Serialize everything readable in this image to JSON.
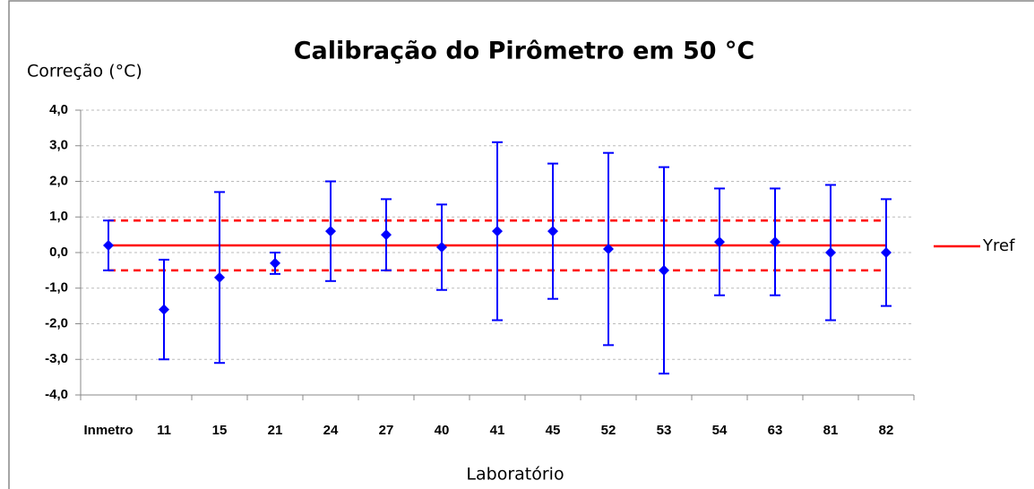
{
  "chart_data": {
    "type": "errorbar",
    "title": "Calibração do Pirômetro em 50 °C",
    "y_label": "Correção (°C)",
    "x_label": "Laboratório",
    "categories": [
      "Inmetro",
      "11",
      "15",
      "21",
      "24",
      "27",
      "40",
      "41",
      "45",
      "52",
      "53",
      "54",
      "63",
      "81",
      "82"
    ],
    "values": [
      0.2,
      -1.6,
      -0.7,
      -0.3,
      0.6,
      0.5,
      0.15,
      0.6,
      0.6,
      0.1,
      -0.5,
      0.3,
      0.3,
      0.0,
      0.0
    ],
    "errors": [
      0.7,
      1.4,
      2.4,
      0.3,
      1.4,
      1.0,
      1.2,
      2.5,
      1.9,
      2.7,
      2.9,
      1.5,
      1.5,
      1.9,
      1.5
    ],
    "color": "#0000ff",
    "yref": {
      "name": "Yref",
      "value": 0.2,
      "color": "#ff0000"
    },
    "limits": [
      0.9,
      -0.5
    ],
    "ylim": [
      -4,
      4
    ],
    "yticks": [
      {
        "value": -4,
        "label": "-4,0"
      },
      {
        "value": -3,
        "label": "-3,0"
      },
      {
        "value": -2,
        "label": "-2,0"
      },
      {
        "value": -1,
        "label": "-1,0"
      },
      {
        "value": 0,
        "label": "0,0"
      },
      {
        "value": 1,
        "label": "1,0"
      },
      {
        "value": 2,
        "label": "2,0"
      },
      {
        "value": 3,
        "label": "3,0"
      },
      {
        "value": 4,
        "label": "4,0"
      }
    ],
    "grid": true,
    "legend": "right"
  }
}
